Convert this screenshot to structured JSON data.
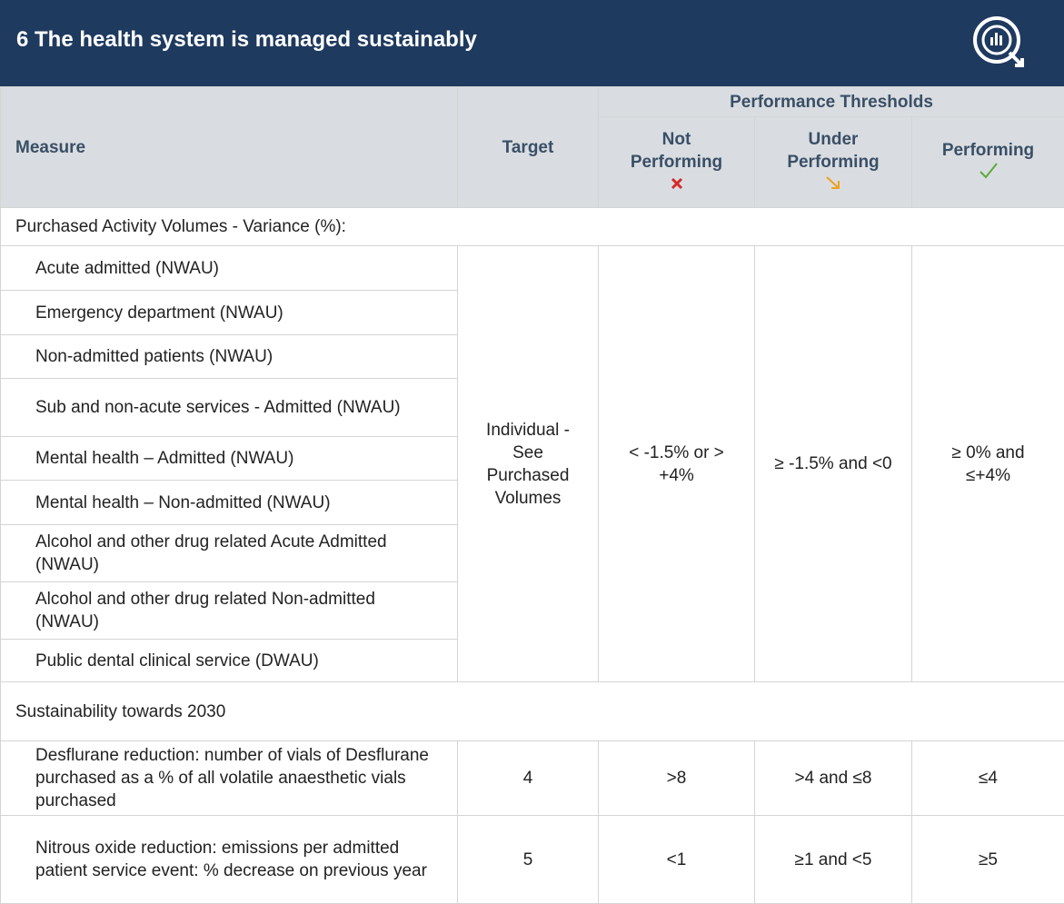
{
  "header": {
    "title": "6 The health system is managed sustainably"
  },
  "table": {
    "columns": {
      "measure": "Measure",
      "target": "Target",
      "thresholds": "Performance Thresholds",
      "not_performing": "Not Performing",
      "under_performing": "Under Performing",
      "performing": "Performing"
    },
    "sections": [
      {
        "title": "Purchased Activity Volumes - Variance (%):",
        "rows": [
          "Acute admitted (NWAU)",
          "Emergency department (NWAU)",
          "Non-admitted patients (NWAU)",
          "Sub and non-acute services - Admitted (NWAU)",
          "Mental health – Admitted (NWAU)",
          "Mental health – Non-admitted (NWAU)",
          "Alcohol and other drug related Acute Admitted (NWAU)",
          "Alcohol and other drug related Non-admitted (NWAU)",
          "Public dental clinical service (DWAU)"
        ],
        "target": "Individual - See Purchased Volumes",
        "not_performing": "< -1.5% or > +4%",
        "under_performing": "≥ -1.5% and <0",
        "performing": "≥ 0% and ≤+4%"
      },
      {
        "title": "Sustainability towards 2030",
        "rows": [
          {
            "measure": "Desflurane reduction: number of vials of Desflurane purchased as a % of all volatile anaesthetic vials purchased",
            "target": "4",
            "not_performing": ">8",
            "under_performing": ">4 and ≤8",
            "performing": "≤4"
          },
          {
            "measure": "Nitrous oxide reduction: emissions per admitted patient service event: % decrease on previous year",
            "target": "5",
            "not_performing": "<1",
            "under_performing": "≥1 and <5",
            "performing": "≥5"
          }
        ]
      }
    ]
  }
}
